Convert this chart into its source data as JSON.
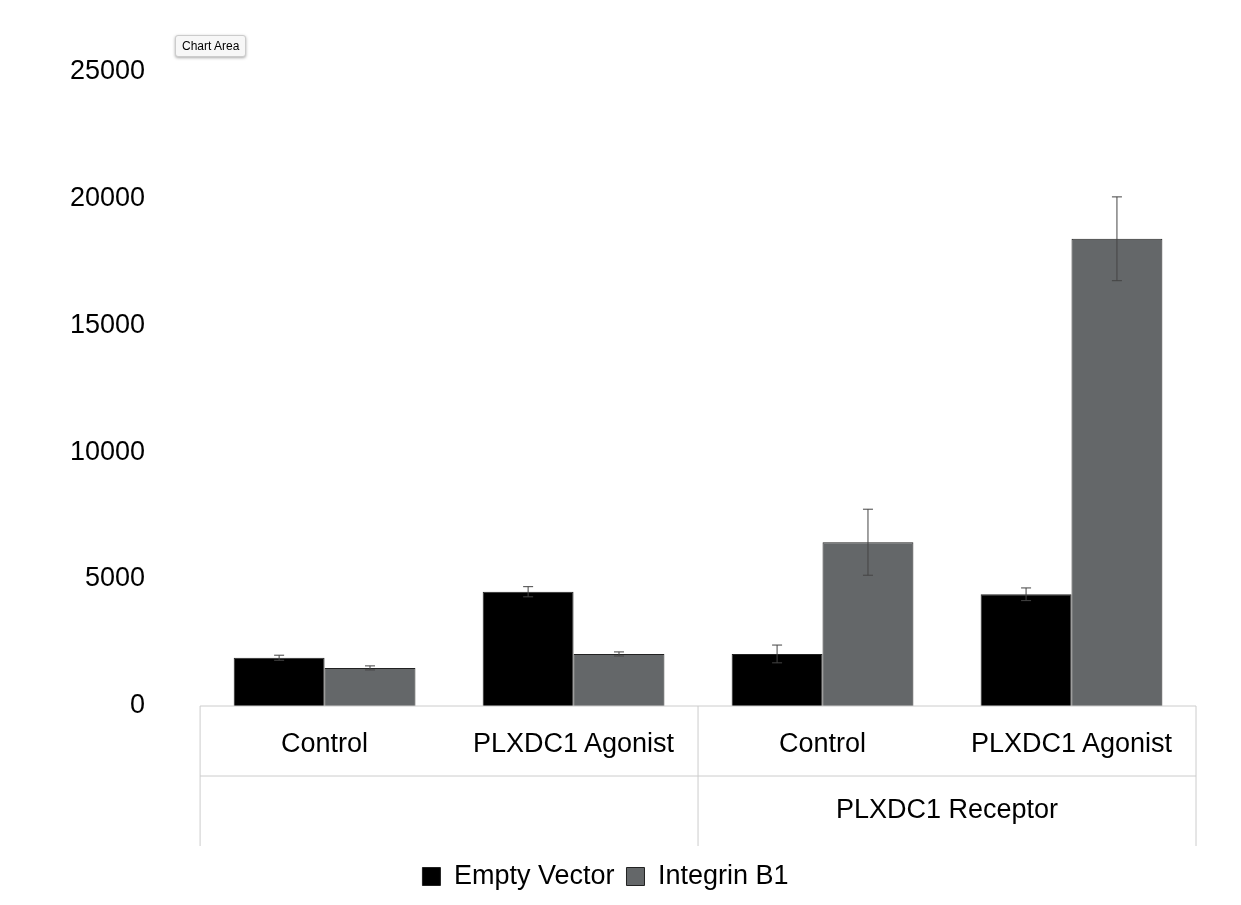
{
  "chart_data": {
    "type": "bar",
    "categories": [
      "Control",
      "PLXDC1 Agonist",
      "Control",
      "PLXDC1 Agonist"
    ],
    "series": [
      {
        "name": "Empty Vector",
        "color": "#000000",
        "values": [
          1900,
          4500,
          2050,
          4400
        ],
        "errors": [
          100,
          200,
          350,
          250
        ]
      },
      {
        "name": "Integrin B1",
        "color": "#646769",
        "values": [
          1500,
          2050,
          6450,
          18400
        ],
        "errors": [
          80,
          80,
          1300,
          1650
        ]
      }
    ],
    "ylim": [
      0,
      25000
    ],
    "yticks": [
      0,
      5000,
      10000,
      15000,
      20000,
      25000
    ],
    "grid": false,
    "legend": "bottom",
    "annotations": [
      "PLXDC1 Receptor",
      "Chart Area"
    ]
  }
}
